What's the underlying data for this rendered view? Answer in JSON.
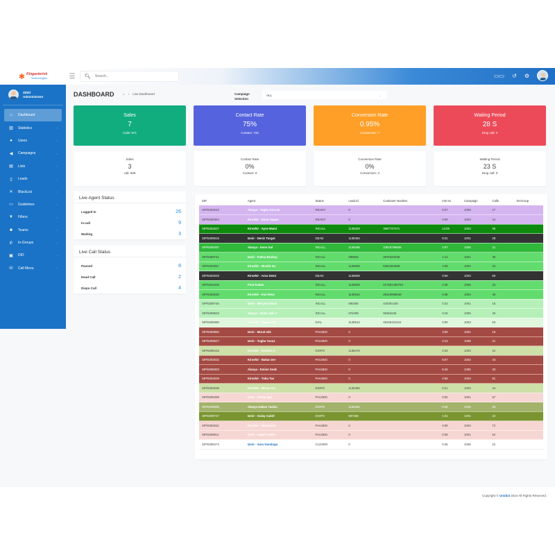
{
  "app": {
    "logo_text": "Kingasterisk",
    "logo_sub": "Technologies",
    "search_placeholder": "Search..."
  },
  "topbar_icons": [
    "columns-icon",
    "history-icon",
    "settings-icon",
    "user-avatar"
  ],
  "user": {
    "name": "dddd",
    "role": "Administrator"
  },
  "sidebar": {
    "items": [
      {
        "label": "Dashboard",
        "icon": "home-icon",
        "active": true
      },
      {
        "label": "Statistics",
        "icon": "chart-icon"
      },
      {
        "label": "Users",
        "icon": "user-icon"
      },
      {
        "label": "Campaigns",
        "icon": "megaphone-icon"
      },
      {
        "label": "Lists",
        "icon": "list-icon"
      },
      {
        "label": "Leads",
        "icon": "file-icon"
      },
      {
        "label": "BlackList",
        "icon": "block-icon"
      },
      {
        "label": "Guidelines",
        "icon": "guide-icon"
      },
      {
        "label": "Filters",
        "icon": "filter-icon"
      },
      {
        "label": "Teams",
        "icon": "team-icon"
      },
      {
        "label": "In-Groups",
        "icon": "phone-icon"
      },
      {
        "label": "DID",
        "icon": "did-icon"
      },
      {
        "label": "Call Menu",
        "icon": "call-menu-icon"
      }
    ]
  },
  "header": {
    "title": "DASHBOARD",
    "breadcrumb": "Live Dashboard",
    "campaign_label_1": "Campaign",
    "campaign_label_2": "Selection",
    "campaign_value": "ALL"
  },
  "top_cards": [
    {
      "title": "Sales",
      "value": "7",
      "sub": "Calls: 971",
      "color": "#12ad7f"
    },
    {
      "title": "Contact Rate",
      "value": "75%",
      "sub": "Contact: 733",
      "color": "#5563de"
    },
    {
      "title": "Conversion Rate",
      "value": "0.95%",
      "sub": "Conversion: 7",
      "color": "#ff9f27"
    },
    {
      "title": "Waiting Period",
      "value": "28 S",
      "sub": "Drop call: 0",
      "color": "#ec4a58"
    }
  ],
  "sub_cards": [
    {
      "title": "Sales",
      "value": "3",
      "sub": "call: 569"
    },
    {
      "title": "Contact Rate",
      "value": "0%",
      "sub": "Contact: 0"
    },
    {
      "title": "Conversion Rate",
      "value": "0%",
      "sub": "Conversion: 3"
    },
    {
      "title": "Waiting Period",
      "value": "23 S",
      "sub": "Drop call: 0"
    }
  ],
  "agent_status": {
    "title": "Live Agent Status",
    "rows": [
      {
        "label": "Logged In",
        "value": "26"
      },
      {
        "label": "In-call",
        "value": "9"
      },
      {
        "label": "Waiting",
        "value": "3"
      }
    ]
  },
  "call_status": {
    "title": "Live Call Status",
    "rows": [
      {
        "label": "Paused",
        "value": "8"
      },
      {
        "label": "Dead Call",
        "value": "2"
      },
      {
        "label": "Dispo Call",
        "value": "4"
      }
    ]
  },
  "table": {
    "columns": [
      "SIP",
      "Agent",
      "Status",
      "Lead Id",
      "Customer Number",
      "mm:ss",
      "Campaign",
      "Calls",
      "IN-Group"
    ],
    "rows": [
      {
        "cls": "r-ready",
        "sip": "SIP/6303043",
        "agent": "Alanya - Tugba Korcak",
        "status": "READY",
        "lead": "0",
        "cust": "",
        "time": "0:27",
        "camp": "1005",
        "calls": "17",
        "ing": ""
      },
      {
        "cls": "r-ready",
        "sip": "SIP/6309354",
        "agent": "Kirsehir - Emre Sapan",
        "status": "READY",
        "lead": "0",
        "cust": "",
        "time": "0:00",
        "camp": "1003",
        "calls": "44",
        "ing": ""
      },
      {
        "cls": "r-incall1",
        "sip": "SIP/6303027",
        "agent": "Kirsehir - Ayse Mami",
        "status": "INCALL",
        "lead": "1138329",
        "cust": "3587727471",
        "time": "14:06",
        "camp": "1003",
        "calls": "36",
        "ing": ""
      },
      {
        "cls": "r-dead",
        "sip": "SIP/6309516",
        "agent": "Izmir - Deniz Turgut",
        "status": "DEAD",
        "lead": "1138454",
        "cust": "",
        "time": "9:31",
        "camp": "1001",
        "calls": "28",
        "ing": ""
      },
      {
        "cls": "r-incall2",
        "sip": "SIP/6309497",
        "agent": "Alanya - Irene Gul",
        "status": "INCALL",
        "lead": "1138495",
        "cust": "23619798608",
        "time": "2:57",
        "camp": "1005",
        "calls": "21",
        "ing": ""
      },
      {
        "cls": "r-incall3",
        "sip": "SIP/6309741",
        "agent": "Izmir - Fatma Bozkuy",
        "status": "INCALL",
        "lead": "699925",
        "cust": "3975320339",
        "time": "1:12",
        "camp": "1001",
        "calls": "38",
        "ing": ""
      },
      {
        "cls": "r-incall3",
        "sip": "SIP/6303057",
        "agent": "Kirsehir - Mcahit Sa",
        "status": "INCALL",
        "lead": "1138505",
        "cust": "6281562688",
        "time": "1:06",
        "camp": "1003",
        "calls": "33",
        "ing": ""
      },
      {
        "cls": "r-dead",
        "sip": "SIP/6303033",
        "agent": "Kirsehir - Arzu Demi",
        "status": "DEAD",
        "lead": "1138508",
        "cust": "",
        "time": "0:00",
        "camp": "1003",
        "calls": "60",
        "ing": ""
      },
      {
        "cls": "r-incall3",
        "sip": "SIP/6301009",
        "agent": "Firat Kadan",
        "status": "INCALL",
        "lead": "1138509",
        "cust": "017681485794",
        "time": "0:36",
        "camp": "1005",
        "calls": "23",
        "ing": ""
      },
      {
        "cls": "r-incall3",
        "sip": "SIP/6303030",
        "agent": "Kirsehir - Inci Deve",
        "status": "INCALL",
        "lead": "1138510",
        "cust": "28419998648",
        "time": "0:36",
        "camp": "1003",
        "calls": "45",
        "ing": ""
      },
      {
        "cls": "r-incall4",
        "sip": "SIP/6309740",
        "agent": "Izmir - Meryem Ilmaz",
        "status": "INCALL",
        "lead": "690406",
        "cust": "420291430",
        "time": "0:22",
        "camp": "1001",
        "calls": "15",
        "ing": ""
      },
      {
        "cls": "r-incall4",
        "sip": "SIP/6309523",
        "agent": "Alanya - Dudu Ayla T",
        "status": "INCALL",
        "lead": "670409",
        "cust": "95351525",
        "time": "0:15",
        "camp": "1005",
        "calls": "46",
        "ing": ""
      },
      {
        "cls": "r-dial",
        "sip": "SIP/6309380",
        "agent": "Kirsehir - Tugce Sali",
        "status": "DIAL",
        "lead": "1138512",
        "cust": "45336101144",
        "time": "0:00",
        "camp": "1003",
        "calls": "53",
        "ing": ""
      },
      {
        "cls": "r-paused",
        "sip": "SIP/6309850",
        "agent": "Izmir - Murat Isik",
        "status": "PAUSED",
        "lead": "0",
        "cust": "",
        "time": "3:00",
        "camp": "1001",
        "calls": "16",
        "ing": ""
      },
      {
        "cls": "r-paused",
        "sip": "SIP/6309647",
        "agent": "Izmir - Tugba Yavuz",
        "status": "PAUSED",
        "lead": "0",
        "cust": "",
        "time": "2:13",
        "camp": "1008",
        "calls": "21",
        "ing": ""
      },
      {
        "cls": "r-dispo",
        "sip": "SIP/6309418",
        "agent": "Kirsehir - Ibrahim A",
        "status": "DISPO",
        "lead": "1138475",
        "cust": "",
        "time": "0:29",
        "camp": "1003",
        "calls": "22",
        "ing": ""
      },
      {
        "cls": "r-paused",
        "sip": "SIP/6303032",
        "agent": "Kirsehir - Bahar Der",
        "status": "PAUSED",
        "lead": "0",
        "cust": "",
        "time": "5:07",
        "camp": "1003",
        "calls": "43",
        "ing": ""
      },
      {
        "cls": "r-paused",
        "sip": "SIP/6309303",
        "agent": "Alanya - Emine Sndz",
        "status": "PAUSED",
        "lead": "0",
        "cust": "",
        "time": "5:16",
        "camp": "1005",
        "calls": "33",
        "ing": ""
      },
      {
        "cls": "r-paused",
        "sip": "SIP/6303029",
        "agent": "Kirsehir - Tuba Tas",
        "status": "PAUSED",
        "lead": "0",
        "cust": "",
        "time": "2:56",
        "camp": "1003",
        "calls": "51",
        "ing": ""
      },
      {
        "cls": "r-dispo",
        "sip": "SIP/6303038",
        "agent": "Kirsehir - Birnur Ko",
        "status": "DISPO",
        "lead": "1138486",
        "cust": "",
        "time": "0:21",
        "camp": "1003",
        "calls": "44",
        "ing": ""
      },
      {
        "cls": "r-pink",
        "sip": "SIP/6309498",
        "agent": "Izmir - Aliriza Ilan",
        "status": "PAUSED",
        "lead": "0",
        "cust": "",
        "time": "0:00",
        "camp": "1001",
        "calls": "57",
        "ing": ""
      },
      {
        "cls": "r-dispo2",
        "sip": "SIP/6309099",
        "agent": "Alanya-Hakan Taskin",
        "status": "DISPO",
        "lead": "1138492",
        "cust": "",
        "time": "0:40",
        "camp": "1005",
        "calls": "25",
        "ing": ""
      },
      {
        "cls": "r-dispo3",
        "sip": "SIP/6309747",
        "agent": "Izmir - Gulay Cakirl",
        "status": "DISPO",
        "lead": "687338",
        "cust": "",
        "time": "1:31",
        "camp": "1001",
        "calls": "22",
        "ing": ""
      },
      {
        "cls": "r-pink",
        "sip": "SIP/6303031",
        "agent": "Kirsehir - Merve Ery",
        "status": "PAUSED",
        "lead": "0",
        "cust": "",
        "time": "0:08",
        "camp": "1003",
        "calls": "72",
        "ing": ""
      },
      {
        "cls": "r-pink",
        "sip": "SIP/6309911",
        "agent": "Izmir - Asgul Carkin",
        "status": "PAUSED",
        "lead": "0",
        "cust": "",
        "time": "0:09",
        "camp": "1001",
        "calls": "62",
        "ing": ""
      },
      {
        "cls": "r-closer",
        "sip": "SIP/6309474",
        "agent": "Izmir - Sara Gundogu",
        "status": "CLOSER",
        "lead": "0",
        "cust": "",
        "time": "0:46",
        "camp": "1008",
        "calls": "22",
        "ing": ""
      }
    ]
  },
  "footer": {
    "prefix": "Copyright ©",
    "brand": "Unidial",
    "suffix": "2024 All Rights Reserved."
  }
}
